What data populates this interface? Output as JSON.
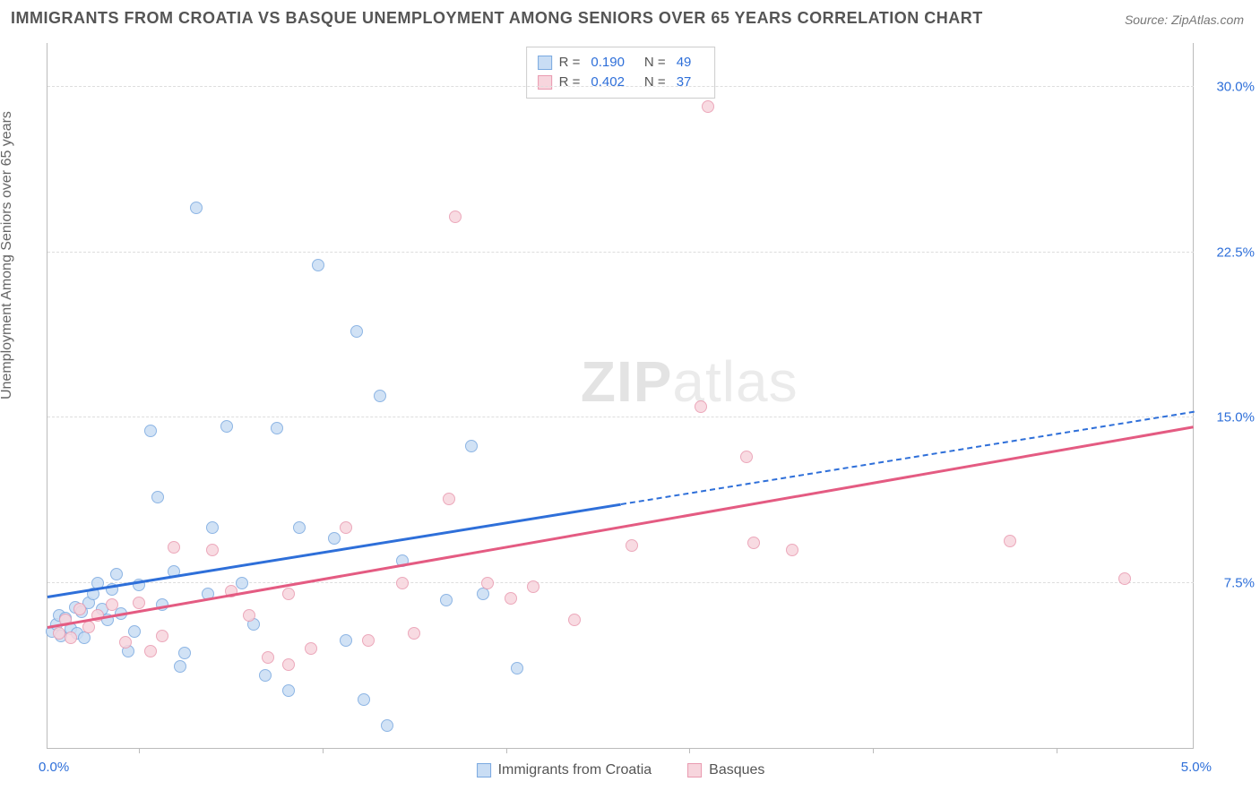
{
  "title": "IMMIGRANTS FROM CROATIA VS BASQUE UNEMPLOYMENT AMONG SENIORS OVER 65 YEARS CORRELATION CHART",
  "source": "Source: ZipAtlas.com",
  "ylabel": "Unemployment Among Seniors over 65 years",
  "watermark_bold": "ZIP",
  "watermark_light": "atlas",
  "chart": {
    "type": "scatter",
    "background_color": "#ffffff",
    "grid_color": "#dddddd",
    "axis_color": "#bbbbbb",
    "tick_label_color": "#2e6fd9",
    "text_color": "#555555",
    "title_fontsize": 18,
    "label_fontsize": 16,
    "tick_fontsize": 15,
    "marker_size": 14,
    "xlim": [
      0.0,
      5.0
    ],
    "ylim": [
      0.0,
      32.0
    ],
    "xtick_positions": [
      0.4,
      1.2,
      2.0,
      2.8,
      3.6,
      4.4
    ],
    "yticks": [
      {
        "v": 7.5,
        "label": "7.5%"
      },
      {
        "v": 15.0,
        "label": "15.0%"
      },
      {
        "v": 22.5,
        "label": "22.5%"
      },
      {
        "v": 30.0,
        "label": "30.0%"
      }
    ],
    "x_zero_label": "0.0%",
    "x_max_label": "5.0%",
    "series": [
      {
        "key": "croatia",
        "label": "Immigrants from Croatia",
        "fill": "#c9ddf4",
        "stroke": "#7aa9e0",
        "line_color": "#2e6fd9",
        "R": "0.190",
        "N": "49",
        "trend": {
          "x1": 0.0,
          "y1": 6.8,
          "x2": 5.0,
          "y2": 15.2,
          "solid_until_x": 2.5
        },
        "points": [
          [
            0.02,
            5.3
          ],
          [
            0.04,
            5.6
          ],
          [
            0.05,
            6.0
          ],
          [
            0.06,
            5.1
          ],
          [
            0.08,
            5.9
          ],
          [
            0.1,
            5.4
          ],
          [
            0.12,
            6.4
          ],
          [
            0.13,
            5.2
          ],
          [
            0.15,
            6.2
          ],
          [
            0.16,
            5.0
          ],
          [
            0.18,
            6.6
          ],
          [
            0.2,
            7.0
          ],
          [
            0.22,
            7.5
          ],
          [
            0.24,
            6.3
          ],
          [
            0.26,
            5.8
          ],
          [
            0.28,
            7.2
          ],
          [
            0.3,
            7.9
          ],
          [
            0.32,
            6.1
          ],
          [
            0.35,
            4.4
          ],
          [
            0.38,
            5.3
          ],
          [
            0.4,
            7.4
          ],
          [
            0.45,
            14.4
          ],
          [
            0.48,
            11.4
          ],
          [
            0.5,
            6.5
          ],
          [
            0.55,
            8.0
          ],
          [
            0.58,
            3.7
          ],
          [
            0.6,
            4.3
          ],
          [
            0.65,
            24.5
          ],
          [
            0.7,
            7.0
          ],
          [
            0.72,
            10.0
          ],
          [
            0.78,
            14.6
          ],
          [
            0.85,
            7.5
          ],
          [
            0.9,
            5.6
          ],
          [
            0.95,
            3.3
          ],
          [
            1.0,
            14.5
          ],
          [
            1.05,
            2.6
          ],
          [
            1.1,
            10.0
          ],
          [
            1.18,
            21.9
          ],
          [
            1.25,
            9.5
          ],
          [
            1.3,
            4.9
          ],
          [
            1.35,
            18.9
          ],
          [
            1.38,
            2.2
          ],
          [
            1.45,
            16.0
          ],
          [
            1.48,
            1.0
          ],
          [
            1.55,
            8.5
          ],
          [
            1.74,
            6.7
          ],
          [
            1.85,
            13.7
          ],
          [
            1.9,
            7.0
          ],
          [
            2.05,
            3.6
          ]
        ]
      },
      {
        "key": "basque",
        "label": "Basques",
        "fill": "#f7d5dd",
        "stroke": "#e99ab0",
        "line_color": "#e45b82",
        "R": "0.402",
        "N": "37",
        "trend": {
          "x1": 0.0,
          "y1": 5.4,
          "x2": 5.0,
          "y2": 14.5,
          "solid_until_x": 5.0
        },
        "points": [
          [
            0.05,
            5.2
          ],
          [
            0.08,
            5.8
          ],
          [
            0.1,
            5.0
          ],
          [
            0.14,
            6.3
          ],
          [
            0.18,
            5.5
          ],
          [
            0.22,
            6.0
          ],
          [
            0.28,
            6.5
          ],
          [
            0.34,
            4.8
          ],
          [
            0.4,
            6.6
          ],
          [
            0.45,
            4.4
          ],
          [
            0.5,
            5.1
          ],
          [
            0.55,
            9.1
          ],
          [
            0.72,
            9.0
          ],
          [
            0.8,
            7.1
          ],
          [
            0.88,
            6.0
          ],
          [
            0.96,
            4.1
          ],
          [
            1.05,
            3.8
          ],
          [
            1.05,
            7.0
          ],
          [
            1.15,
            4.5
          ],
          [
            1.3,
            10.0
          ],
          [
            1.4,
            4.9
          ],
          [
            1.55,
            7.5
          ],
          [
            1.6,
            5.2
          ],
          [
            1.75,
            11.3
          ],
          [
            1.78,
            24.1
          ],
          [
            1.92,
            7.5
          ],
          [
            2.02,
            6.8
          ],
          [
            2.12,
            7.3
          ],
          [
            2.3,
            5.8
          ],
          [
            2.55,
            9.2
          ],
          [
            2.85,
            15.5
          ],
          [
            2.88,
            29.1
          ],
          [
            3.05,
            13.2
          ],
          [
            3.08,
            9.3
          ],
          [
            3.25,
            9.0
          ],
          [
            4.2,
            9.4
          ],
          [
            4.7,
            7.7
          ]
        ]
      }
    ],
    "bottom_legend": [
      {
        "swatch_fill": "#c9ddf4",
        "swatch_stroke": "#7aa9e0",
        "label": "Immigrants from Croatia"
      },
      {
        "swatch_fill": "#f7d5dd",
        "swatch_stroke": "#e99ab0",
        "label": "Basques"
      }
    ]
  }
}
